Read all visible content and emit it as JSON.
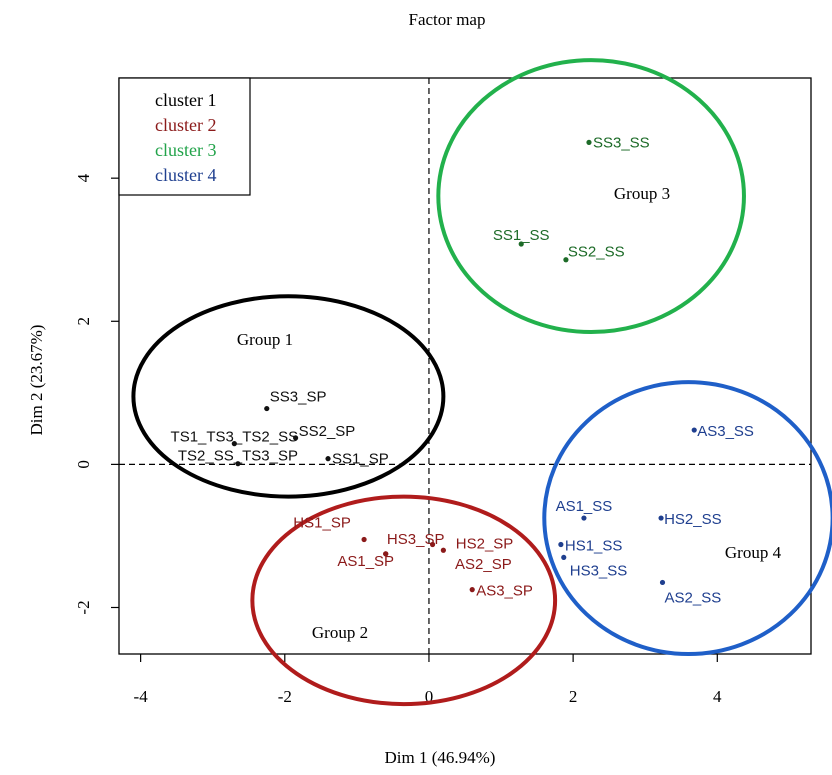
{
  "chart_data": {
    "type": "scatter",
    "title": "Factor map",
    "xlabel": "Dim 1 (46.94%)",
    "ylabel": "Dim 2 (23.67%)",
    "xlim": [
      -4.3,
      5.3
    ],
    "ylim": [
      -2.65,
      5.4
    ],
    "x_ticks": [
      {
        "value": -4,
        "label": "-4"
      },
      {
        "value": -2,
        "label": "-2"
      },
      {
        "value": 0,
        "label": "0"
      },
      {
        "value": 2,
        "label": "2"
      },
      {
        "value": 4,
        "label": "4"
      }
    ],
    "y_ticks": [
      {
        "value": -2,
        "label": "-2"
      },
      {
        "value": 0,
        "label": "0"
      },
      {
        "value": 2,
        "label": "2"
      },
      {
        "value": 4,
        "label": "4"
      }
    ],
    "reference_lines": {
      "x": 0,
      "y": 0,
      "style": "dashed"
    },
    "legend": {
      "position": "top-left",
      "entries": [
        {
          "label": "cluster 1",
          "color": "#000000"
        },
        {
          "label": "cluster 2",
          "color": "#8b1a1a"
        },
        {
          "label": "cluster 3",
          "color": "#22a34a"
        },
        {
          "label": "cluster 4",
          "color": "#1f3f8f"
        }
      ]
    },
    "series": [
      {
        "name": "cluster 1",
        "color": "#111111",
        "points": [
          {
            "label": "SS3_SP",
            "x": -2.25,
            "y": 0.78
          },
          {
            "label": "TS1_TS3_TS2_SS",
            "x": -2.7,
            "y": 0.29
          },
          {
            "label": "SS2_SP",
            "x": -1.85,
            "y": 0.37
          },
          {
            "label": "TS2_SS_TS3_SP",
            "x": -2.65,
            "y": 0.01
          },
          {
            "label": "SS1_SP",
            "x": -1.4,
            "y": 0.08
          }
        ]
      },
      {
        "name": "cluster 2",
        "color": "#8b1a1a",
        "points": [
          {
            "label": "HS1_SP",
            "x": -0.9,
            "y": -1.05
          },
          {
            "label": "HS3_SP",
            "x": -0.6,
            "y": -1.25
          },
          {
            "label": "AS1_SP",
            "x": -0.6,
            "y": -1.25
          },
          {
            "label": "HS2_SP",
            "x": 0.05,
            "y": -1.12
          },
          {
            "label": "AS2_SP",
            "x": 0.2,
            "y": -1.2
          },
          {
            "label": "AS3_SP",
            "x": 0.6,
            "y": -1.75
          }
        ]
      },
      {
        "name": "cluster 3",
        "color": "#1d6b28",
        "points": [
          {
            "label": "SS3_SS",
            "x": 2.22,
            "y": 4.5
          },
          {
            "label": "SS1_SS",
            "x": 1.28,
            "y": 3.08
          },
          {
            "label": "SS2_SS",
            "x": 1.9,
            "y": 2.86
          }
        ]
      },
      {
        "name": "cluster 4",
        "color": "#1f3f8f",
        "points": [
          {
            "label": "AS3_SS",
            "x": 3.68,
            "y": 0.48
          },
          {
            "label": "AS1_SS",
            "x": 2.15,
            "y": -0.75
          },
          {
            "label": "HS2_SS",
            "x": 3.22,
            "y": -0.75
          },
          {
            "label": "HS1_SS",
            "x": 1.83,
            "y": -1.12
          },
          {
            "label": "HS3_SS",
            "x": 1.87,
            "y": -1.3
          },
          {
            "label": "AS2_SS",
            "x": 3.24,
            "y": -1.65
          }
        ]
      }
    ],
    "groups": [
      {
        "label": "Group 1",
        "color": "#000000",
        "cx": -1.95,
        "cy": 0.95,
        "rx": 2.15,
        "ry": 1.4
      },
      {
        "label": "Group 2",
        "color": "#b01c1c",
        "cx": -0.35,
        "cy": -1.9,
        "rx": 2.1,
        "ry": 1.45
      },
      {
        "label": "Group 3",
        "color": "#22b14c",
        "cx": 2.25,
        "cy": 3.75,
        "rx": 2.12,
        "ry": 1.9
      },
      {
        "label": "Group 4",
        "color": "#1f5fc8",
        "cx": 3.6,
        "cy": -0.75,
        "rx": 2.0,
        "ry": 1.9
      }
    ]
  }
}
